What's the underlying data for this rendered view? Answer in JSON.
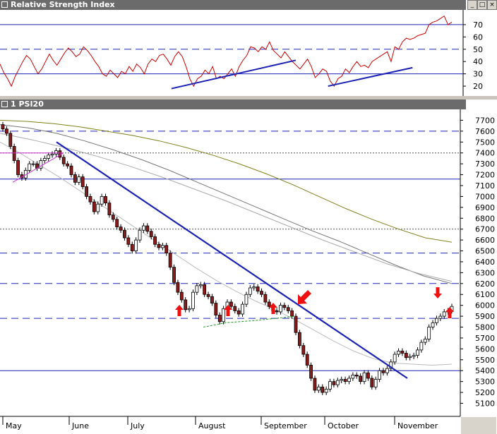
{
  "rsi_panel": {
    "title": "Relative Strength Index"
  },
  "price_panel": {
    "title": "1 PSI20"
  },
  "window_buttons": {
    "minimize": "_",
    "restore": "□",
    "close": "×"
  },
  "chart_data": [
    {
      "type": "line",
      "title": "Relative Strength Index",
      "ylim": [
        12,
        82
      ],
      "y_ticks": [
        20,
        30,
        40,
        50,
        60,
        70
      ],
      "reference_lines": [
        {
          "value": 70,
          "style": "solid"
        },
        {
          "value": 50,
          "style": "dashed"
        },
        {
          "value": 30,
          "style": "solid"
        }
      ],
      "series": [
        {
          "color": "#cc0000",
          "values": [
            38,
            31,
            26,
            20,
            28,
            34,
            40,
            45,
            42,
            36,
            30,
            34,
            40,
            46,
            41,
            37,
            42,
            47,
            51,
            48,
            44,
            46,
            52,
            49,
            45,
            40,
            36,
            30,
            28,
            33,
            30,
            27,
            32,
            30,
            36,
            32,
            38,
            35,
            30,
            38,
            42,
            40,
            45,
            46,
            42,
            37,
            44,
            48,
            44,
            36,
            26,
            20,
            26,
            28,
            33,
            30,
            36,
            26,
            28,
            26,
            30,
            34,
            28,
            36,
            41,
            45,
            52,
            51,
            48,
            52,
            50,
            56,
            49,
            46,
            43,
            48,
            44,
            40,
            37,
            34,
            38,
            42,
            36,
            27,
            30,
            34,
            32,
            24,
            20,
            26,
            28,
            34,
            31,
            36,
            40,
            36,
            37,
            35,
            40,
            42,
            44,
            46,
            48,
            40,
            52,
            50,
            56,
            59,
            58,
            59,
            61,
            62,
            63,
            70,
            72,
            73,
            75,
            77,
            70,
            72
          ]
        }
      ],
      "trend_lines": [
        {
          "from": [
            0.345,
            18
          ],
          "to": [
            0.595,
            41
          ]
        },
        {
          "from": [
            0.66,
            20
          ],
          "to": [
            0.83,
            35
          ]
        }
      ]
    },
    {
      "type": "candlestick",
      "title": "1 PSI20",
      "x_tick_labels": [
        "May",
        "June",
        "July",
        "August",
        "September",
        "October",
        "November"
      ],
      "ylim": [
        4980,
        7800
      ],
      "y_ticks": [
        5100,
        5200,
        5300,
        5400,
        5500,
        5600,
        5700,
        5800,
        5900,
        6000,
        6100,
        6200,
        6300,
        6400,
        6500,
        6600,
        6700,
        6800,
        6900,
        7000,
        7100,
        7200,
        7300,
        7400,
        7500,
        7600,
        7700
      ],
      "close": [
        7620,
        7580,
        7460,
        7330,
        7200,
        7170,
        7240,
        7300,
        7300,
        7260,
        7330,
        7350,
        7380,
        7390,
        7420,
        7360,
        7300,
        7280,
        7200,
        7130,
        7180,
        7090,
        7000,
        6950,
        6860,
        6930,
        7000,
        6940,
        6830,
        6790,
        6720,
        6690,
        6620,
        6560,
        6500,
        6600,
        6690,
        6730,
        6680,
        6630,
        6560,
        6530,
        6550,
        6480,
        6350,
        6210,
        6120,
        6050,
        5960,
        5970,
        6120,
        6180,
        6190,
        6100,
        6080,
        6020,
        5910,
        5850,
        5970,
        6030,
        5990,
        5950,
        5920,
        6010,
        6100,
        6160,
        6170,
        6130,
        6100,
        6030,
        5990,
        5950,
        5940,
        6000,
        5980,
        5950,
        5900,
        5750,
        5630,
        5550,
        5450,
        5330,
        5220,
        5250,
        5200,
        5230,
        5300,
        5270,
        5310,
        5320,
        5300,
        5330,
        5360,
        5350,
        5300,
        5380,
        5330,
        5250,
        5320,
        5400,
        5380,
        5420,
        5480,
        5550,
        5580,
        5560,
        5520,
        5530,
        5540,
        5590,
        5660,
        5690,
        5800,
        5840,
        5880,
        5900,
        5940,
        5950,
        5990
      ],
      "reference_lines": [
        {
          "value": 7600,
          "style": "dashed"
        },
        {
          "value": 7400,
          "style": "dotted"
        },
        {
          "value": 7160,
          "style": "solid"
        },
        {
          "value": 6700,
          "style": "dotted"
        },
        {
          "value": 6480,
          "style": "dashed"
        },
        {
          "value": 6200,
          "style": "dashed"
        },
        {
          "value": 5880,
          "style": "dashed"
        },
        {
          "value": 5400,
          "style": "solid"
        }
      ],
      "moving_averages": [
        {
          "color": "#808020",
          "values": [
            7700,
            7690,
            7670,
            7640,
            7600,
            7560,
            7510,
            7450,
            7380,
            7300,
            7210,
            7110,
            7000,
            6890,
            6790,
            6700,
            6620,
            6580
          ]
        },
        {
          "color": "#777777",
          "values": [
            7660,
            7630,
            7580,
            7510,
            7430,
            7340,
            7240,
            7130,
            7020,
            6910,
            6800,
            6690,
            6590,
            6480,
            6370,
            6270,
            6200
          ]
        },
        {
          "color": "#aaaaaa",
          "values": [
            7580,
            7520,
            7450,
            7370,
            7280,
            7180,
            7070,
            6960,
            6840,
            6720,
            6600,
            6490,
            6380,
            6290,
            6220
          ]
        },
        {
          "color": "#bbbbbb",
          "values": [
            7500,
            7400,
            7290,
            7180,
            7060,
            6940,
            6820,
            6700,
            6580,
            6460,
            6340,
            6230,
            6130,
            6040,
            5960,
            5870,
            5770,
            5670,
            5580,
            5510,
            5470,
            5460,
            5450,
            5460
          ]
        }
      ],
      "downtrend_line": {
        "from": [
          7500,
          "late May"
        ],
        "to": [
          5330,
          "mid November"
        ]
      },
      "arrows": [
        "up",
        "up",
        "up",
        "down-left",
        "down",
        "up"
      ]
    }
  ]
}
